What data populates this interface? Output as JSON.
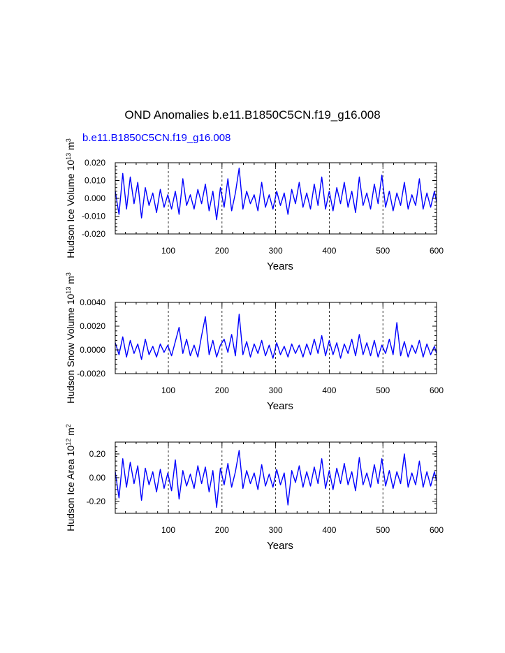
{
  "page": {
    "title": "OND Anomalies b.e11.B1850C5CN.f19_g16.008",
    "series_label": "b.e11.B1850C5CN.f19_g16.008",
    "line_color": "#0000ff"
  },
  "chart_data": [
    {
      "type": "line",
      "name": "ice-volume",
      "title": "",
      "xlabel": "Years",
      "ylabel": "Hudson Ice Volume",
      "ylabel_unit_prefix": "10",
      "ylabel_exp": "13",
      "ylabel_unit": "m",
      "ylabel_unit_exp": "3",
      "xlim": [
        1,
        600
      ],
      "ylim": [
        -0.02,
        0.02
      ],
      "xticks": [
        100,
        200,
        300,
        400,
        500,
        600
      ],
      "xtick_labels": [
        "100",
        "200",
        "300",
        "400",
        "500",
        "600"
      ],
      "yticks": [
        -0.02,
        -0.01,
        0.0,
        0.01,
        0.02
      ],
      "ytick_labels": [
        "-0.020",
        "-0.010",
        "0.000",
        "0.010",
        "0.020"
      ],
      "vlines": [
        100,
        200,
        300,
        400,
        500
      ],
      "series": [
        {
          "name": "b.e11.B1850C5CN.f19_g16.008",
          "x": [
            1,
            8,
            15,
            22,
            29,
            36,
            43,
            50,
            57,
            64,
            71,
            78,
            85,
            92,
            99,
            106,
            113,
            120,
            127,
            134,
            141,
            148,
            155,
            162,
            169,
            176,
            183,
            190,
            197,
            204,
            211,
            218,
            225,
            232,
            239,
            246,
            253,
            260,
            267,
            274,
            281,
            288,
            295,
            302,
            309,
            316,
            323,
            330,
            337,
            344,
            351,
            358,
            365,
            372,
            379,
            386,
            393,
            400,
            407,
            414,
            421,
            428,
            435,
            442,
            449,
            456,
            463,
            470,
            477,
            484,
            491,
            498,
            505,
            512,
            519,
            526,
            533,
            540,
            547,
            554,
            561,
            568,
            575,
            582,
            589,
            596,
            600
          ],
          "values": [
            0.004,
            -0.009,
            0.014,
            -0.006,
            0.012,
            -0.003,
            0.009,
            -0.011,
            0.006,
            -0.004,
            0.003,
            -0.008,
            0.005,
            -0.005,
            0.002,
            -0.006,
            0.004,
            -0.009,
            0.011,
            -0.004,
            0.002,
            -0.006,
            0.005,
            -0.003,
            0.008,
            -0.007,
            0.004,
            -0.012,
            0.006,
            -0.005,
            0.011,
            -0.007,
            0.003,
            0.017,
            -0.006,
            0.004,
            -0.003,
            0.002,
            -0.007,
            0.009,
            -0.005,
            0.002,
            -0.006,
            0.004,
            -0.004,
            0.003,
            -0.009,
            0.005,
            -0.003,
            0.009,
            -0.005,
            0.003,
            -0.006,
            0.008,
            -0.004,
            0.012,
            -0.006,
            0.004,
            -0.007,
            0.006,
            -0.003,
            0.009,
            -0.005,
            0.004,
            -0.008,
            0.012,
            -0.004,
            0.003,
            -0.006,
            0.008,
            -0.003,
            0.013,
            -0.005,
            0.004,
            -0.007,
            0.003,
            -0.004,
            0.009,
            -0.006,
            0.002,
            -0.004,
            0.011,
            -0.006,
            0.003,
            -0.005,
            0.004,
            -0.002
          ]
        }
      ]
    },
    {
      "type": "line",
      "name": "snow-volume",
      "title": "",
      "xlabel": "Years",
      "ylabel": "Hudson Snow Volume",
      "ylabel_unit_prefix": "10",
      "ylabel_exp": "13",
      "ylabel_unit": "m",
      "ylabel_unit_exp": "3",
      "xlim": [
        1,
        600
      ],
      "ylim": [
        -0.002,
        0.004
      ],
      "xticks": [
        100,
        200,
        300,
        400,
        500,
        600
      ],
      "xtick_labels": [
        "100",
        "200",
        "300",
        "400",
        "500",
        "600"
      ],
      "yticks": [
        -0.002,
        0.0,
        0.002,
        0.004
      ],
      "ytick_labels": [
        "-0.0020",
        "0.0000",
        "0.0020",
        "0.0040"
      ],
      "vlines": [
        100,
        200,
        300,
        400,
        500
      ],
      "series": [
        {
          "name": "b.e11.B1850C5CN.f19_g16.008",
          "x": [
            1,
            8,
            15,
            22,
            29,
            36,
            43,
            50,
            57,
            64,
            71,
            78,
            85,
            92,
            99,
            106,
            113,
            120,
            127,
            134,
            141,
            148,
            155,
            162,
            169,
            176,
            183,
            190,
            197,
            204,
            211,
            218,
            225,
            232,
            239,
            246,
            253,
            260,
            267,
            274,
            281,
            288,
            295,
            302,
            309,
            316,
            323,
            330,
            337,
            344,
            351,
            358,
            365,
            372,
            379,
            386,
            393,
            400,
            407,
            414,
            421,
            428,
            435,
            442,
            449,
            456,
            463,
            470,
            477,
            484,
            491,
            498,
            505,
            512,
            519,
            526,
            533,
            540,
            547,
            554,
            561,
            568,
            575,
            582,
            589,
            596,
            600
          ],
          "values": [
            0.0006,
            -0.0004,
            0.0011,
            -0.0006,
            0.0008,
            -0.0003,
            0.0005,
            -0.0008,
            0.0009,
            -0.0004,
            0.0003,
            -0.0006,
            0.0005,
            -0.0002,
            0.0004,
            -0.0005,
            0.0007,
            0.0019,
            -0.0003,
            0.0009,
            -0.0005,
            0.0004,
            -0.0006,
            0.0012,
            0.0028,
            -0.0004,
            0.0008,
            -0.0006,
            0.0004,
            0.0009,
            -0.0002,
            0.0013,
            -0.0005,
            0.003,
            -0.0004,
            0.0007,
            -0.0006,
            0.0005,
            -0.0003,
            0.0008,
            -0.0005,
            0.0004,
            -0.0007,
            0.0006,
            -0.0004,
            0.0003,
            -0.0006,
            0.0005,
            -0.0003,
            0.0004,
            -0.0006,
            0.0005,
            -0.0004,
            0.0009,
            -0.0003,
            0.0012,
            -0.0005,
            0.0008,
            -0.0004,
            0.0006,
            -0.0007,
            0.0005,
            -0.0003,
            0.0009,
            -0.0005,
            0.0013,
            -0.0004,
            0.0006,
            -0.0005,
            0.0008,
            -0.0006,
            0.0004,
            -0.0003,
            0.0009,
            -0.0004,
            0.0023,
            -0.0005,
            0.0007,
            -0.0006,
            0.0004,
            -0.0003,
            0.0008,
            -0.0006,
            0.0005,
            -0.0004,
            0.0003,
            -0.0003
          ]
        }
      ]
    },
    {
      "type": "line",
      "name": "ice-area",
      "title": "",
      "xlabel": "Years",
      "ylabel": "Hudson Ice Area",
      "ylabel_unit_prefix": "10",
      "ylabel_exp": "12",
      "ylabel_unit": "m",
      "ylabel_unit_exp": "2",
      "xlim": [
        1,
        600
      ],
      "ylim": [
        -0.3,
        0.3
      ],
      "xticks": [
        100,
        200,
        300,
        400,
        500,
        600
      ],
      "xtick_labels": [
        "100",
        "200",
        "300",
        "400",
        "500",
        "600"
      ],
      "yticks": [
        -0.2,
        0.0,
        0.2
      ],
      "ytick_labels": [
        "-0.20",
        "0.00",
        "0.20"
      ],
      "vlines": [
        100,
        200,
        300,
        400,
        500
      ],
      "series": [
        {
          "name": "b.e11.B1850C5CN.f19_g16.008",
          "x": [
            1,
            8,
            15,
            22,
            29,
            36,
            43,
            50,
            57,
            64,
            71,
            78,
            85,
            92,
            99,
            106,
            113,
            120,
            127,
            134,
            141,
            148,
            155,
            162,
            169,
            176,
            183,
            190,
            197,
            204,
            211,
            218,
            225,
            232,
            239,
            246,
            253,
            260,
            267,
            274,
            281,
            288,
            295,
            302,
            309,
            316,
            323,
            330,
            337,
            344,
            351,
            358,
            365,
            372,
            379,
            386,
            393,
            400,
            407,
            414,
            421,
            428,
            435,
            442,
            449,
            456,
            463,
            470,
            477,
            484,
            491,
            498,
            505,
            512,
            519,
            526,
            533,
            540,
            547,
            554,
            561,
            568,
            575,
            582,
            589,
            596,
            600
          ],
          "values": [
            0.05,
            -0.17,
            0.16,
            -0.08,
            0.13,
            -0.05,
            0.1,
            -0.19,
            0.08,
            -0.06,
            0.05,
            -0.12,
            0.07,
            -0.09,
            0.04,
            -0.11,
            0.15,
            -0.18,
            0.06,
            -0.07,
            0.03,
            -0.09,
            0.1,
            -0.05,
            0.09,
            -0.12,
            0.06,
            -0.25,
            0.08,
            -0.06,
            0.12,
            -0.08,
            0.05,
            0.23,
            -0.09,
            0.06,
            -0.05,
            0.04,
            -0.1,
            0.11,
            -0.07,
            0.03,
            -0.08,
            0.07,
            -0.06,
            0.04,
            -0.23,
            0.06,
            -0.04,
            0.1,
            -0.08,
            0.05,
            -0.07,
            0.09,
            -0.05,
            0.16,
            -0.09,
            0.06,
            -0.1,
            0.08,
            -0.05,
            0.12,
            -0.06,
            0.05,
            -0.11,
            0.17,
            -0.06,
            0.04,
            -0.08,
            0.11,
            -0.05,
            0.16,
            -0.07,
            0.06,
            -0.09,
            0.05,
            -0.05,
            0.2,
            -0.08,
            0.04,
            -0.06,
            0.14,
            -0.08,
            0.05,
            -0.07,
            0.05,
            -0.03
          ]
        }
      ]
    }
  ]
}
